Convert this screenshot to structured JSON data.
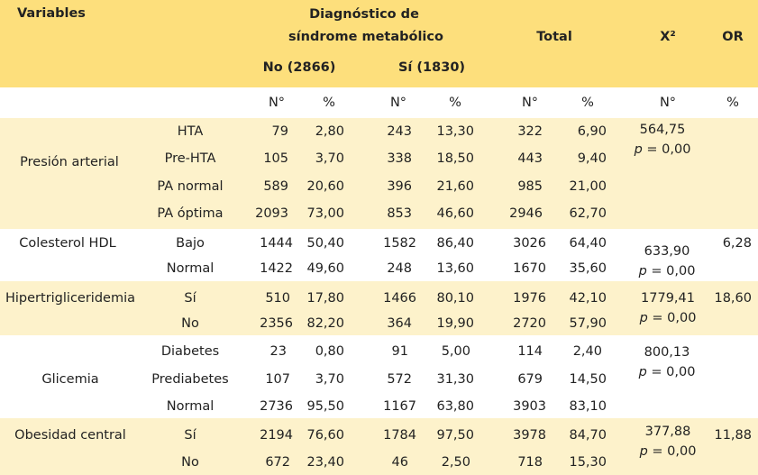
{
  "header": {
    "variables": "Variables",
    "diag_line1": "Diagnóstico de",
    "diag_line2": "síndrome metabólico",
    "no_group": "No (2866)",
    "si_group": "Sí (1830)",
    "total": "Total",
    "chi2": "X²",
    "or": "OR"
  },
  "subheader": {
    "n1": "N°",
    "p1": "%",
    "n2": "N°",
    "p2": "%",
    "n3": "N°",
    "p3": "%",
    "n4": "N°",
    "p4": "%"
  },
  "groups": [
    {
      "variable": "Presión arterial",
      "stat_value": "564,75",
      "p_label": "p",
      "p_rest": " = 0,00",
      "or": "",
      "rows": [
        {
          "cat": "HTA",
          "no_n": "79",
          "no_p": "2,80",
          "si_n": "243",
          "si_p": "13,30",
          "tot_n": "322",
          "tot_p": "6,90"
        },
        {
          "cat": "Pre-HTA",
          "no_n": "105",
          "no_p": "3,70",
          "si_n": "338",
          "si_p": "18,50",
          "tot_n": "443",
          "tot_p": "9,40"
        },
        {
          "cat": "PA normal",
          "no_n": "589",
          "no_p": "20,60",
          "si_n": "396",
          "si_p": "21,60",
          "tot_n": "985",
          "tot_p": "21,00"
        },
        {
          "cat": "PA óptima",
          "no_n": "2093",
          "no_p": "73,00",
          "si_n": "853",
          "si_p": "46,60",
          "tot_n": "2946",
          "tot_p": "62,70"
        }
      ]
    },
    {
      "variable": "Colesterol HDL",
      "stat_value": "633,90",
      "p_label": "p",
      "p_rest": " = 0,00",
      "or": "6,28",
      "rows": [
        {
          "cat": "Bajo",
          "no_n": "1444",
          "no_p": "50,40",
          "si_n": "1582",
          "si_p": "86,40",
          "tot_n": "3026",
          "tot_p": "64,40"
        },
        {
          "cat": "Normal",
          "no_n": "1422",
          "no_p": "49,60",
          "si_n": "248",
          "si_p": "13,60",
          "tot_n": "1670",
          "tot_p": "35,60"
        }
      ]
    },
    {
      "variable": "Hipertrigliceridemia",
      "stat_value": "1779,41",
      "p_label": "p",
      "p_rest": " = 0,00",
      "or": "18,60",
      "rows": [
        {
          "cat": "Sí",
          "no_n": "510",
          "no_p": "17,80",
          "si_n": "1466",
          "si_p": "80,10",
          "tot_n": "1976",
          "tot_p": "42,10"
        },
        {
          "cat": "No",
          "no_n": "2356",
          "no_p": "82,20",
          "si_n": "364",
          "si_p": "19,90",
          "tot_n": "2720",
          "tot_p": "57,90"
        }
      ]
    },
    {
      "variable": "Glicemia",
      "stat_value": "800,13",
      "p_label": "p",
      "p_rest": " = 0,00",
      "or": "",
      "rows": [
        {
          "cat": "Diabetes",
          "no_n": "23",
          "no_p": "0,80",
          "si_n": "91",
          "si_p": "5,00",
          "tot_n": "114",
          "tot_p": "2,40"
        },
        {
          "cat": "Prediabetes",
          "no_n": "107",
          "no_p": "3,70",
          "si_n": "572",
          "si_p": "31,30",
          "tot_n": "679",
          "tot_p": "14,50"
        },
        {
          "cat": "Normal",
          "no_n": "2736",
          "no_p": "95,50",
          "si_n": "1167",
          "si_p": "63,80",
          "tot_n": "3903",
          "tot_p": "83,10"
        }
      ]
    },
    {
      "variable": "Obesidad central",
      "stat_value": "377,88",
      "p_label": "p",
      "p_rest": " = 0,00",
      "or": "11,88",
      "rows": [
        {
          "cat": "Sí",
          "no_n": "2194",
          "no_p": "76,60",
          "si_n": "1784",
          "si_p": "97,50",
          "tot_n": "3978",
          "tot_p": "84,70"
        },
        {
          "cat": "No",
          "no_n": "672",
          "no_p": "23,40",
          "si_n": "46",
          "si_p": "2,50",
          "tot_n": "718",
          "tot_p": "15,30"
        }
      ]
    }
  ],
  "colors": {
    "header_bg": "#fddf7c",
    "band_yellow": "#fdf2cb",
    "band_white": "#ffffff"
  }
}
